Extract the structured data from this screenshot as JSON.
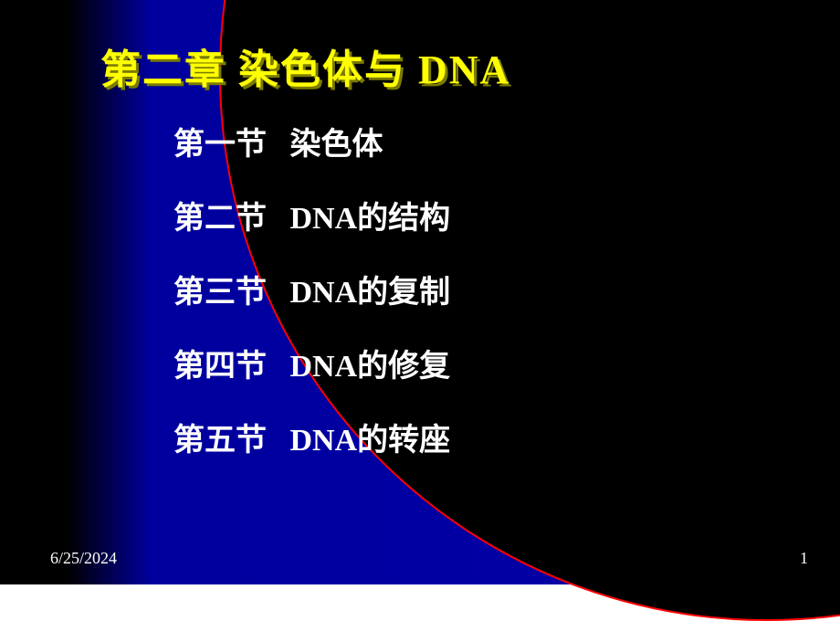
{
  "title": "第二章  染色体与 DNA",
  "sections": [
    "第一节   染色体",
    "第二节   DNA的结构",
    "第三节   DNA的复制",
    "第四节   DNA的修复",
    "第五节   DNA的转座"
  ],
  "footer": {
    "date": "6/25/2024",
    "page": "1"
  },
  "style": {
    "bg_gradient_from": "#000000",
    "bg_gradient_to": "#0000a8",
    "title_color": "#ffff00",
    "title_shadow": "#7a7a00",
    "text_color": "#ffffff",
    "arc_color": "#ff0000",
    "title_fontsize": 44,
    "section_fontsize": 34,
    "footer_fontsize": 18
  }
}
